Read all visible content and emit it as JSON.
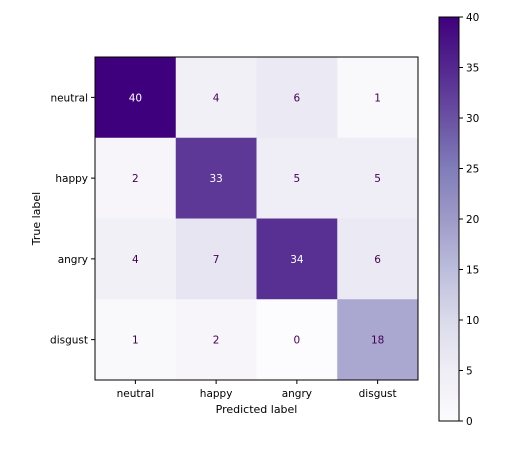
{
  "chart_data": {
    "type": "heatmap",
    "title": "",
    "xlabel": "Predicted label",
    "ylabel": "True label",
    "x_categories": [
      "neutral",
      "happy",
      "angry",
      "disgust"
    ],
    "y_categories": [
      "neutral",
      "happy",
      "angry",
      "disgust"
    ],
    "values": [
      [
        40,
        4,
        6,
        1
      ],
      [
        2,
        33,
        5,
        5
      ],
      [
        4,
        7,
        34,
        6
      ],
      [
        1,
        2,
        0,
        18
      ]
    ],
    "colormap": "Purples",
    "colorbar": {
      "min": 0,
      "max": 40,
      "ticks": [
        "0",
        "5",
        "10",
        "15",
        "20",
        "25",
        "30",
        "35",
        "40"
      ]
    },
    "colors": {
      "low": "#fcfbfd",
      "high": "#3f007d",
      "text_on_dark": "#ffffff",
      "text_on_light": "#440154"
    }
  }
}
